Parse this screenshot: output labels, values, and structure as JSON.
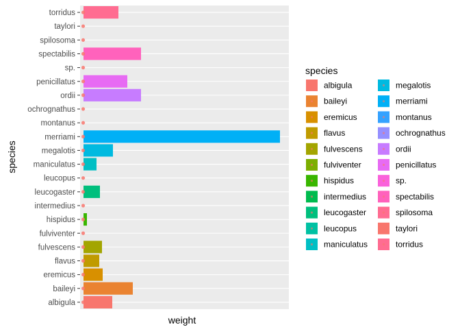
{
  "chart_data": {
    "type": "bar",
    "xlabel": "weight",
    "ylabel": "species",
    "legend_title": "species",
    "legend_position": "right",
    "grid": true,
    "background": "#EBEBEB",
    "categories": [
      "albigula",
      "baileyi",
      "eremicus",
      "flavus",
      "fulvescens",
      "fulviventer",
      "hispidus",
      "intermedius",
      "leucogaster",
      "leucopus",
      "maniculatus",
      "megalotis",
      "merriami",
      "montanus",
      "ochrognathus",
      "ordii",
      "penicillatus",
      "sp.",
      "spectabilis",
      "spilosoma",
      "taylori",
      "torridus"
    ],
    "colors": [
      "#F8766D",
      "#EA8331",
      "#D89000",
      "#C09B00",
      "#A3A500",
      "#7CAE00",
      "#39B600",
      "#00BB4E",
      "#00BF7D",
      "#00C1A3",
      "#00BFC4",
      "#00BAE0",
      "#00B0F6",
      "#35A2FF",
      "#9590FF",
      "#C77CFF",
      "#E76BF3",
      "#FA62DB",
      "#FF62BC",
      "#FF6C91",
      "#F8766D",
      "#FF6C91"
    ],
    "values": [
      42,
      72,
      28,
      23,
      27,
      0,
      5,
      0,
      24,
      0,
      19,
      43,
      287,
      0,
      0,
      84,
      64,
      0,
      84,
      0,
      0,
      51
    ],
    "legend_columns": [
      [
        "albigula",
        "baileyi",
        "eremicus",
        "flavus",
        "fulvescens",
        "fulviventer",
        "hispidus",
        "intermedius",
        "leucogaster",
        "leucopus",
        "maniculatus"
      ],
      [
        "megalotis",
        "merriami",
        "montanus",
        "ochrognathus",
        "ordii",
        "penicillatus",
        "sp.",
        "spectabilis",
        "spilosoma",
        "taylori",
        "torridus"
      ]
    ]
  }
}
